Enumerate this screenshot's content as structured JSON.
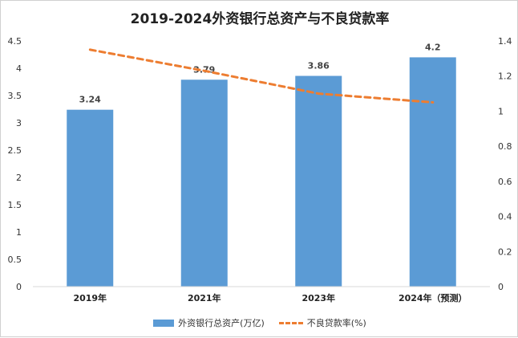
{
  "chart_data": {
    "type": "bar",
    "title": "2019-2024外资银行总资产与不良贷款率",
    "categories": [
      "2019年",
      "2021年",
      "2023年",
      "2024年（预测）"
    ],
    "series": [
      {
        "name": "外资银行总资产(万亿)",
        "type": "bar",
        "axis": "left",
        "color": "#5b9bd5",
        "values": [
          3.24,
          3.79,
          3.86,
          4.2
        ]
      },
      {
        "name": "不良贷款率(%)",
        "type": "line",
        "axis": "right",
        "color": "#ed7d31",
        "style": "dashed",
        "values": [
          1.35,
          1.23,
          1.1,
          1.05
        ]
      }
    ],
    "data_labels": [
      "3.24",
      "3.79",
      "3.86",
      "4.2"
    ],
    "y_left": {
      "min": 0,
      "max": 4.5,
      "ticks": [
        "0",
        "0.5",
        "1",
        "1.5",
        "2",
        "2.5",
        "3",
        "3.5",
        "4",
        "4.5"
      ]
    },
    "y_right": {
      "min": 0,
      "max": 1.4,
      "ticks": [
        "0",
        "0.2",
        "0.4",
        "0.6",
        "0.8",
        "1",
        "1.2",
        "1.4"
      ]
    },
    "grid": false,
    "legend_position": "bottom"
  }
}
